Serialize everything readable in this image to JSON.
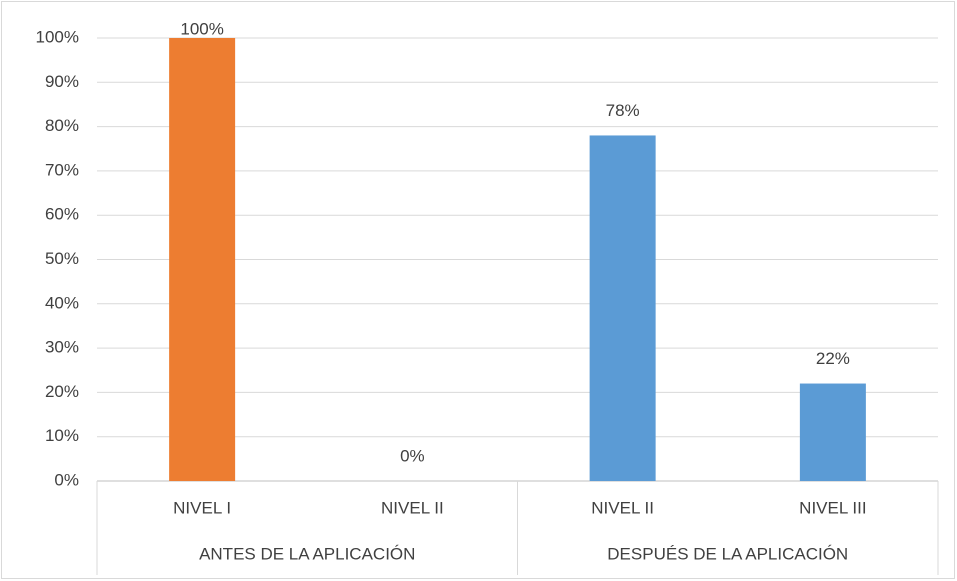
{
  "chart_data": {
    "type": "bar",
    "categories": [
      "NIVEL I",
      "NIVEL II",
      "NIVEL II",
      "NIVEL III"
    ],
    "groups": [
      "ANTES DE LA APLICACIÓN",
      "DESPUÉS DE LA APLICACIÓN"
    ],
    "values": [
      100,
      0,
      78,
      22
    ],
    "value_labels": [
      "100%",
      "0%",
      "78%",
      "22%"
    ],
    "colors": [
      "#ed7d31",
      "#ed7d31",
      "#5b9bd5",
      "#5b9bd5"
    ],
    "ylim": [
      0,
      100
    ],
    "yticks": [
      {
        "value": 0,
        "label": "0%"
      },
      {
        "value": 10,
        "label": "10%"
      },
      {
        "value": 20,
        "label": "20%"
      },
      {
        "value": 30,
        "label": "30%"
      },
      {
        "value": 40,
        "label": "40%"
      },
      {
        "value": 50,
        "label": "50%"
      },
      {
        "value": 60,
        "label": "60%"
      },
      {
        "value": 70,
        "label": "70%"
      },
      {
        "value": 80,
        "label": "80%"
      },
      {
        "value": 90,
        "label": "90%"
      },
      {
        "value": 100,
        "label": "100%"
      }
    ],
    "grid": true
  }
}
